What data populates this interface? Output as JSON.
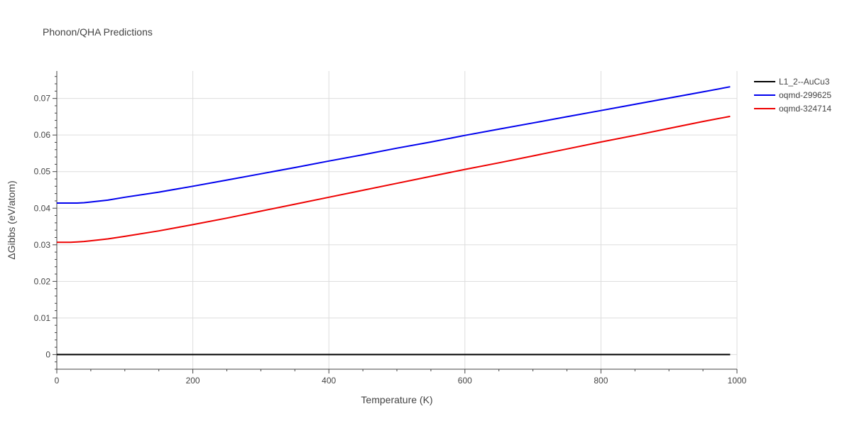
{
  "chart_data": {
    "type": "line",
    "title": "Phonon/QHA Predictions",
    "xlabel": "Temperature (K)",
    "ylabel": "ΔGibbs (eV/atom)",
    "xlim": [
      0,
      1000
    ],
    "ylim": [
      -0.004,
      0.0775
    ],
    "x_ticks": [
      0,
      200,
      400,
      600,
      800,
      1000
    ],
    "x_tick_labels": [
      "0",
      "200",
      "400",
      "600",
      "800",
      "1000"
    ],
    "y_ticks": [
      0,
      0.01,
      0.02,
      0.03,
      0.04,
      0.05,
      0.06,
      0.07
    ],
    "y_tick_labels": [
      "0",
      "0.01",
      "0.02",
      "0.03",
      "0.04",
      "0.05",
      "0.06",
      "0.07"
    ],
    "grid": true,
    "legend_position": "top-right",
    "series": [
      {
        "name": "L1_2--AuCu3",
        "color": "#000000",
        "x": [
          0,
          990
        ],
        "y": [
          0,
          0
        ]
      },
      {
        "name": "oqmd-299625",
        "color": "#0000ee",
        "x": [
          0,
          10,
          20,
          30,
          40,
          50,
          75,
          100,
          150,
          200,
          250,
          300,
          350,
          400,
          450,
          500,
          550,
          600,
          650,
          700,
          750,
          800,
          850,
          900,
          950,
          990
        ],
        "y": [
          0.0414,
          0.0414,
          0.0414,
          0.0414,
          0.0415,
          0.0417,
          0.0422,
          0.043,
          0.0444,
          0.046,
          0.0477,
          0.0494,
          0.0511,
          0.0529,
          0.0546,
          0.0564,
          0.0581,
          0.0599,
          0.0616,
          0.0633,
          0.065,
          0.0667,
          0.0684,
          0.0701,
          0.0718,
          0.0732
        ]
      },
      {
        "name": "oqmd-324714",
        "color": "#ee0000",
        "x": [
          0,
          10,
          20,
          30,
          40,
          50,
          75,
          100,
          150,
          200,
          250,
          300,
          350,
          400,
          450,
          500,
          550,
          600,
          650,
          700,
          750,
          800,
          850,
          900,
          950,
          990
        ],
        "y": [
          0.0307,
          0.0307,
          0.0307,
          0.0308,
          0.0309,
          0.0311,
          0.0316,
          0.0323,
          0.0338,
          0.0355,
          0.0373,
          0.0392,
          0.0411,
          0.043,
          0.0449,
          0.0468,
          0.0487,
          0.0506,
          0.0524,
          0.0543,
          0.0562,
          0.0581,
          0.0599,
          0.0618,
          0.0637,
          0.0651
        ]
      }
    ]
  }
}
